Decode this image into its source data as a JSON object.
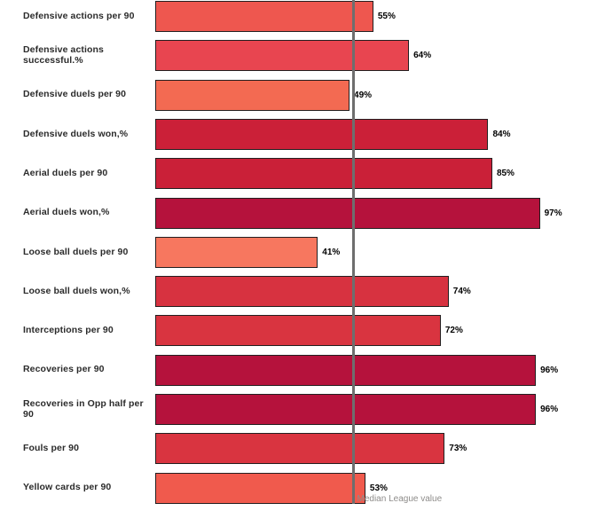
{
  "chart_data": {
    "type": "bar",
    "orientation": "horizontal",
    "title": "",
    "xlabel": "",
    "ylabel": "",
    "xlim": [
      0,
      100
    ],
    "grid": false,
    "categories": [
      "Defensive actions per 90",
      "Defensive actions successful.%",
      "Defensive duels per 90",
      "Defensive duels won,%",
      "Aerial duels per 90",
      "Aerial duels won,%",
      "Loose ball duels per 90",
      "Loose ball duels won,%",
      "Interceptions per 90",
      "Recoveries per 90",
      "Recoveries in Opp half per 90",
      "Fouls per 90",
      "Yellow cards per 90"
    ],
    "values": [
      55,
      64,
      49,
      84,
      85,
      97,
      41,
      74,
      72,
      96,
      96,
      73,
      53
    ],
    "value_labels": [
      "55%",
      "64%",
      "49%",
      "84%",
      "85%",
      "97%",
      "41%",
      "74%",
      "72%",
      "96%",
      "96%",
      "73%",
      "53%"
    ],
    "bar_colors": [
      "#ee574f",
      "#e84550",
      "#f36a52",
      "#cb2038",
      "#ca2038",
      "#b5123c",
      "#f7775f",
      "#d73240",
      "#d93440",
      "#b5123c",
      "#b5123c",
      "#d93440",
      "#f05a4d"
    ],
    "reference_line": {
      "value": 50,
      "label": "Median League value",
      "line_color": "#6e6e6e",
      "label_color": "#8e8c8a"
    },
    "legend_position": "none"
  },
  "colors": {
    "background": "#ffffff",
    "bar_border": "#231f20",
    "category_text": "#2b2b2b",
    "value_text": "#000000"
  }
}
